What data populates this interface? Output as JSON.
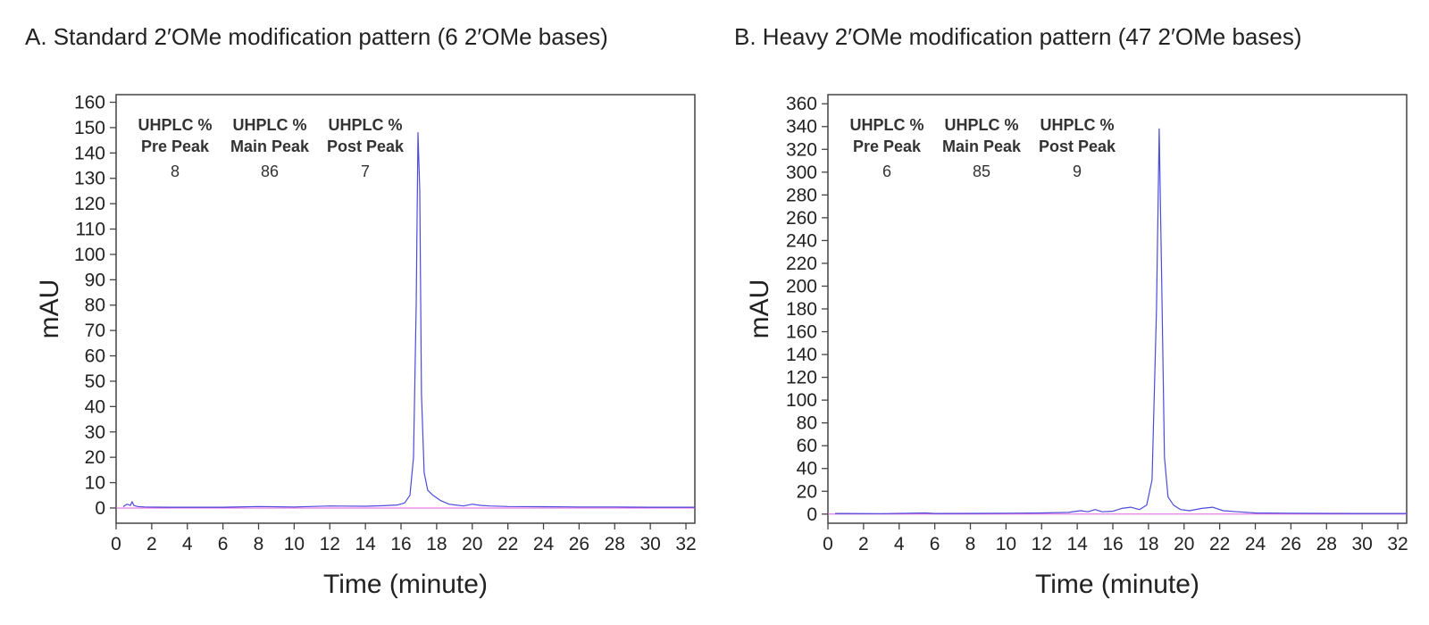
{
  "figure": {
    "panels": [
      {
        "title": "A. Standard 2′OMe modification pattern (6 2′OMe bases)",
        "annotations": [
          {
            "head1": "UHPLC %",
            "head2": "Pre Peak",
            "value": "8"
          },
          {
            "head1": "UHPLC %",
            "head2": "Main Peak",
            "value": "86"
          },
          {
            "head1": "UHPLC %",
            "head2": "Post Peak",
            "value": "7"
          }
        ]
      },
      {
        "title": "B. Heavy 2′OMe modification pattern (47 2′OMe bases)",
        "annotations": [
          {
            "head1": "UHPLC %",
            "head2": "Pre Peak",
            "value": "6"
          },
          {
            "head1": "UHPLC %",
            "head2": "Main Peak",
            "value": "85"
          },
          {
            "head1": "UHPLC %",
            "head2": "Post Peak",
            "value": "9"
          }
        ]
      }
    ]
  },
  "colors": {
    "trace": "#4b4bdc",
    "baseline": "#e060e0",
    "axis": "#444444",
    "grid": "#dddddd"
  },
  "chart_data": [
    {
      "type": "line",
      "title": "A. Standard 2′OMe modification pattern (6 2′OMe bases)",
      "xlabel": "Time (minute)",
      "ylabel": "mAU",
      "xlim": [
        0,
        32.5
      ],
      "ylim": [
        -6,
        163
      ],
      "xticks": [
        0,
        2,
        4,
        6,
        8,
        10,
        12,
        14,
        16,
        18,
        20,
        22,
        24,
        26,
        28,
        30,
        32
      ],
      "yticks": [
        0,
        10,
        20,
        30,
        40,
        50,
        60,
        70,
        80,
        90,
        100,
        110,
        120,
        130,
        140,
        150,
        160
      ],
      "grid": false,
      "series": [
        {
          "x": [
            0.4,
            0.6,
            0.8,
            0.9,
            1.0,
            1.2,
            1.6,
            3,
            6,
            8,
            10,
            12,
            14,
            15,
            15.8,
            16.2,
            16.5,
            16.7,
            16.85,
            16.95,
            17.05,
            17.15,
            17.3,
            17.5,
            17.8,
            18.2,
            18.7,
            19.5,
            20.0,
            20.5,
            21,
            22,
            24,
            26,
            28,
            30,
            32.5
          ],
          "y": [
            0.5,
            1.5,
            1.0,
            2.5,
            1.0,
            0.6,
            0.4,
            0.3,
            0.3,
            0.6,
            0.4,
            0.8,
            0.7,
            0.9,
            1.2,
            2.0,
            5,
            20,
            80,
            148,
            125,
            45,
            14,
            7,
            5,
            3,
            1.5,
            0.8,
            1.5,
            1.0,
            0.8,
            0.6,
            0.5,
            0.4,
            0.4,
            0.3,
            0.3
          ]
        }
      ],
      "table": {
        "columns": [
          "UHPLC % Pre Peak",
          "UHPLC % Main Peak",
          "UHPLC % Post Peak"
        ],
        "values": [
          8,
          86,
          7
        ]
      }
    },
    {
      "type": "line",
      "title": "B. Heavy 2′OMe modification pattern (47 2′OMe bases)",
      "xlabel": "Time (minute)",
      "ylabel": "mAU",
      "xlim": [
        0,
        32.5
      ],
      "ylim": [
        -8,
        368
      ],
      "xticks": [
        0,
        2,
        4,
        6,
        8,
        10,
        12,
        14,
        16,
        18,
        20,
        22,
        24,
        26,
        28,
        30,
        32
      ],
      "yticks": [
        0,
        20,
        40,
        60,
        80,
        100,
        120,
        140,
        160,
        180,
        200,
        220,
        240,
        260,
        280,
        300,
        320,
        340,
        360
      ],
      "grid": false,
      "series": [
        {
          "x": [
            0.4,
            1,
            3,
            5.5,
            6,
            8,
            10,
            12,
            13.5,
            14.2,
            14.6,
            15,
            15.4,
            16,
            16.5,
            17,
            17.5,
            17.9,
            18.2,
            18.45,
            18.6,
            18.75,
            18.9,
            19.1,
            19.4,
            19.8,
            20.3,
            21,
            21.6,
            22.2,
            23,
            24,
            26,
            28,
            30,
            32.5
          ],
          "y": [
            0.5,
            0.5,
            0.4,
            1.0,
            0.5,
            0.6,
            0.8,
            1.0,
            1.5,
            3,
            2,
            4,
            2,
            2.5,
            5,
            6,
            4,
            8,
            30,
            180,
            338,
            200,
            50,
            15,
            8,
            4,
            3,
            5,
            6,
            3,
            2,
            1,
            0.8,
            0.6,
            0.5,
            0.5
          ]
        }
      ],
      "table": {
        "columns": [
          "UHPLC % Pre Peak",
          "UHPLC % Main Peak",
          "UHPLC % Post Peak"
        ],
        "values": [
          6,
          85,
          9
        ]
      }
    }
  ]
}
